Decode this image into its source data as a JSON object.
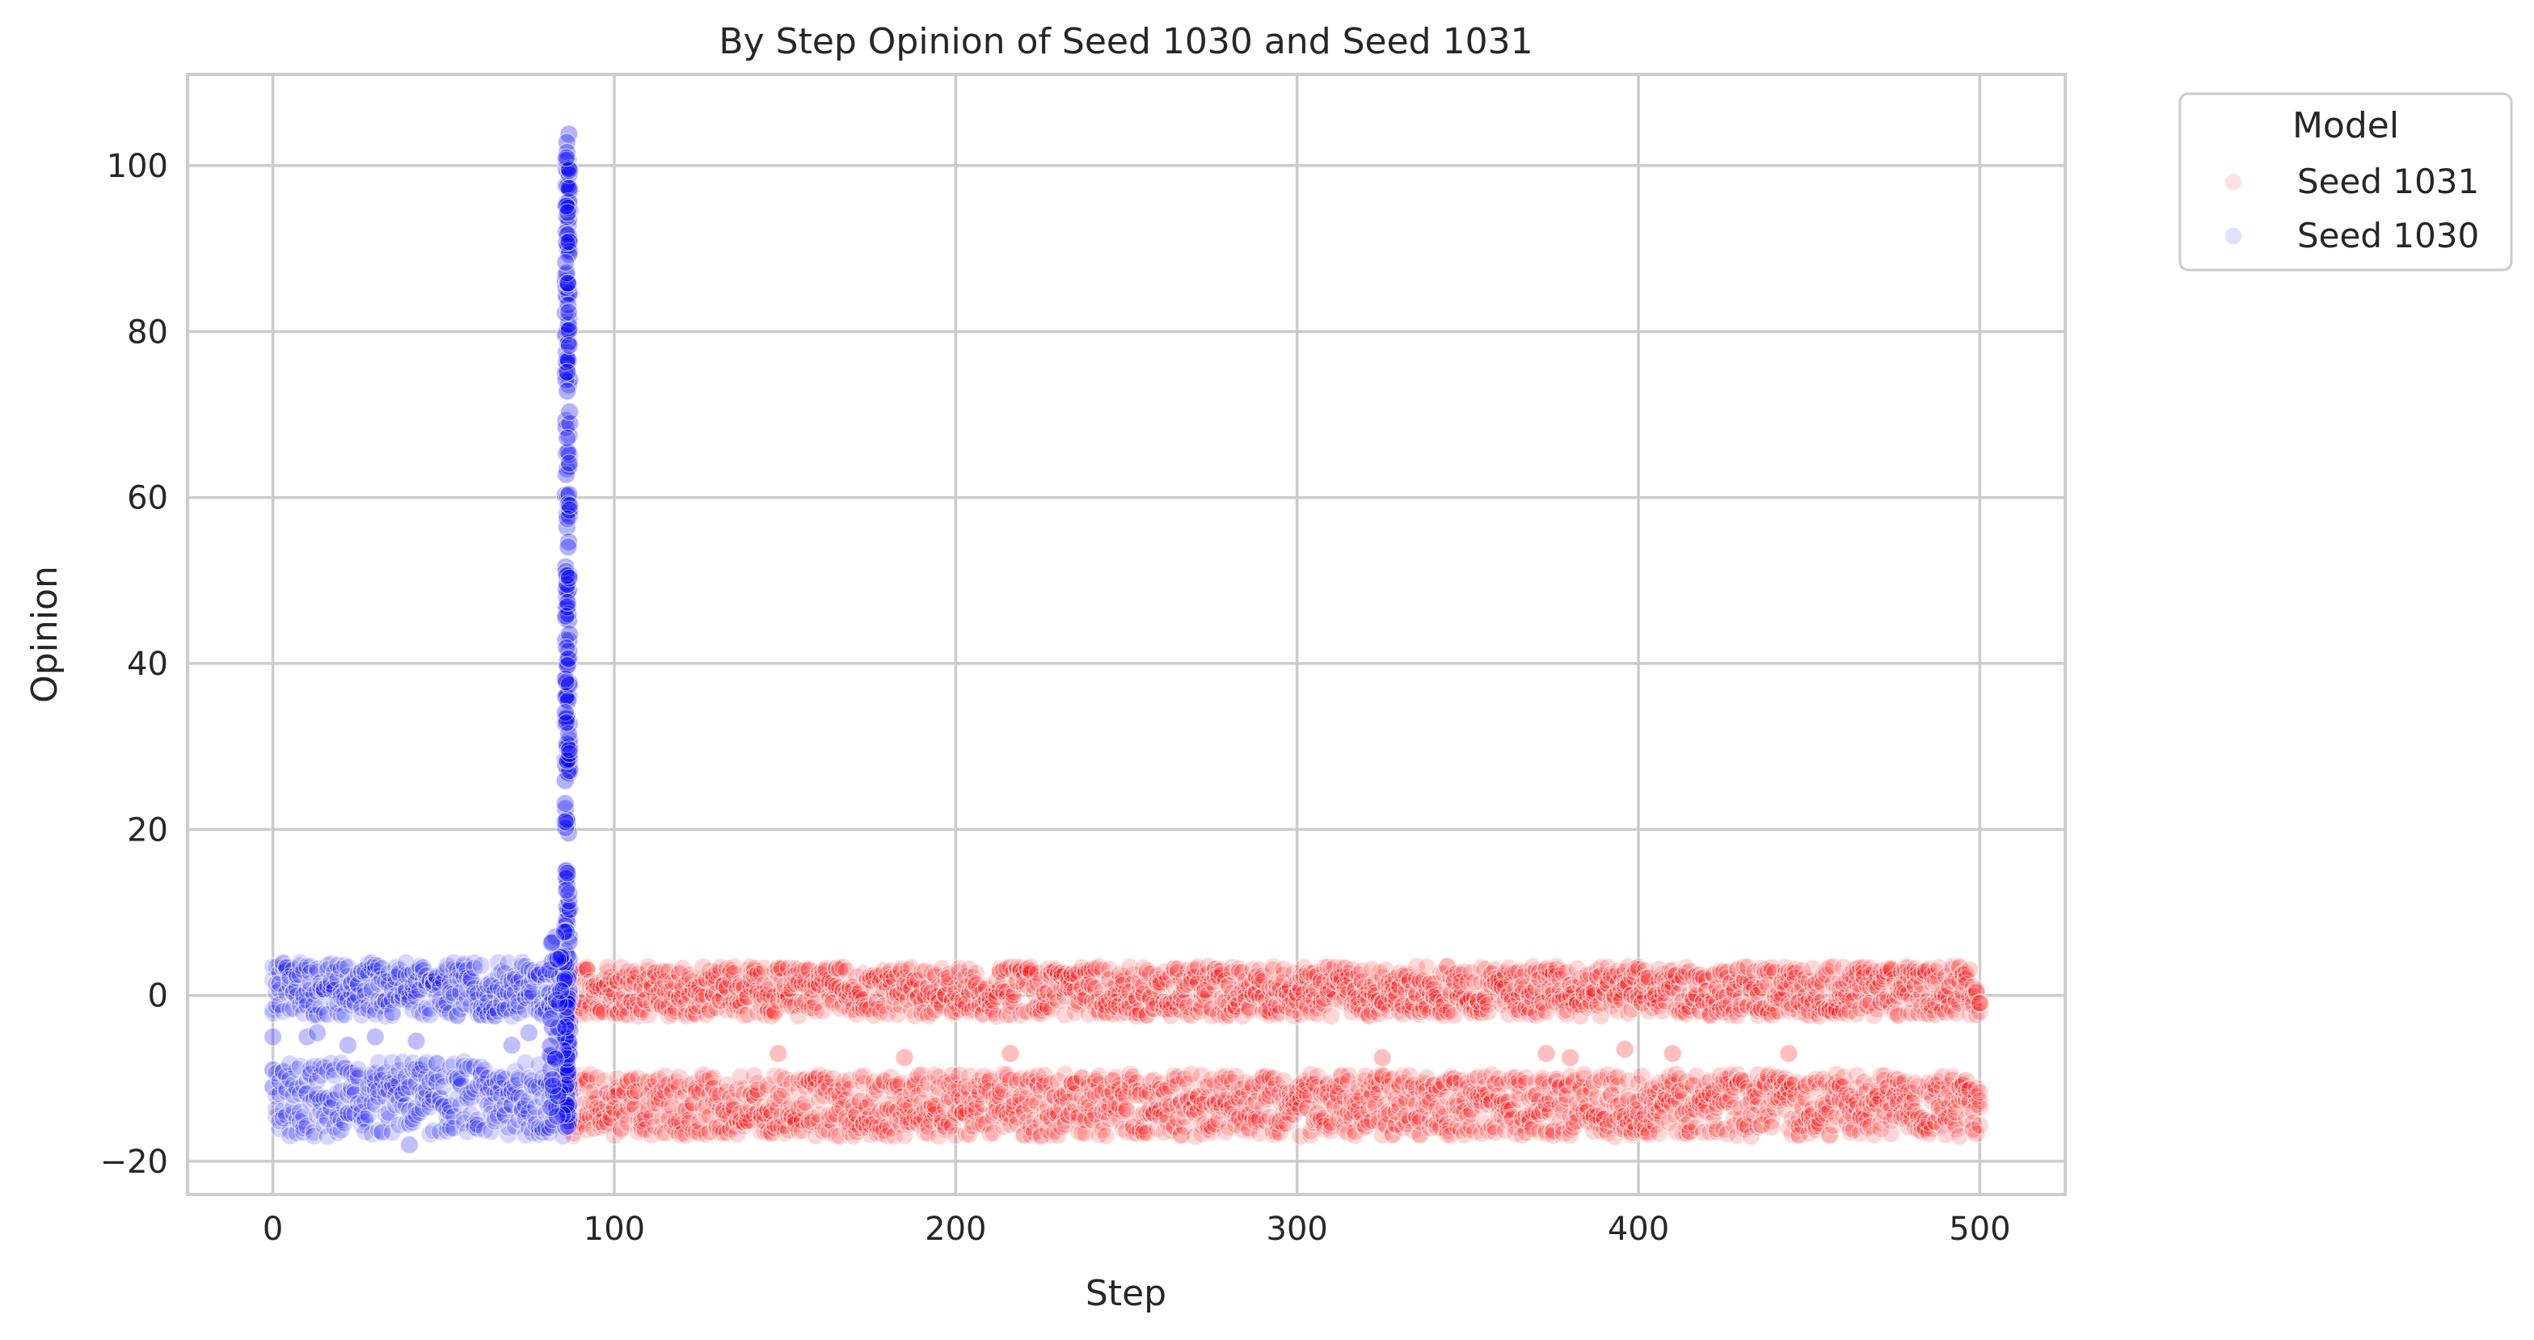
{
  "chart_data": {
    "type": "scatter",
    "title": "By Step Opinion of Seed 1030 and Seed 1031",
    "xlabel": "Step",
    "ylabel": "Opinion",
    "xlim": [
      -25,
      525
    ],
    "ylim": [
      -24,
      111
    ],
    "xticks": [
      0,
      100,
      200,
      300,
      400,
      500
    ],
    "yticks": [
      -20,
      0,
      20,
      40,
      60,
      80,
      100
    ],
    "ytick_labels": [
      "−20",
      "0",
      "20",
      "40",
      "60",
      "80",
      "100"
    ],
    "grid": true,
    "legend": {
      "title": "Model",
      "placement": "outside-top-right",
      "entries": [
        "Seed 1031",
        "Seed 1030"
      ]
    },
    "series": [
      {
        "name": "Seed 1031",
        "color": "#ff0000",
        "step_range": [
          88,
          500
        ],
        "bands": [
          {
            "opinion_min": -2.5,
            "opinion_max": 3.5
          },
          {
            "opinion_min": -17,
            "opinion_max": -9.5
          }
        ],
        "outliers": [
          {
            "x": 148,
            "y": -7
          },
          {
            "x": 185,
            "y": -7.5
          },
          {
            "x": 216,
            "y": -7
          },
          {
            "x": 325,
            "y": -7.5
          },
          {
            "x": 373,
            "y": -7
          },
          {
            "x": 380,
            "y": -7.5
          },
          {
            "x": 396,
            "y": -6.5
          },
          {
            "x": 410,
            "y": -7
          },
          {
            "x": 444,
            "y": -7
          }
        ]
      },
      {
        "name": "Seed 1030",
        "color": "#0000ff",
        "step_range": [
          0,
          87
        ],
        "bands": [
          {
            "opinion_min": -2.5,
            "opinion_max": 4
          },
          {
            "opinion_min": -17,
            "opinion_max": -8
          }
        ],
        "outliers": [
          {
            "x": 0,
            "y": -5
          },
          {
            "x": 10,
            "y": -5
          },
          {
            "x": 13,
            "y": -4.5
          },
          {
            "x": 22,
            "y": -6
          },
          {
            "x": 30,
            "y": -5
          },
          {
            "x": 42,
            "y": -5.5
          },
          {
            "x": 40,
            "y": -18
          },
          {
            "x": 70,
            "y": -6
          },
          {
            "x": 75,
            "y": -4.5
          }
        ],
        "spike": {
          "step": 87,
          "opinion_min": -16,
          "opinion_max": 104
        }
      }
    ]
  }
}
